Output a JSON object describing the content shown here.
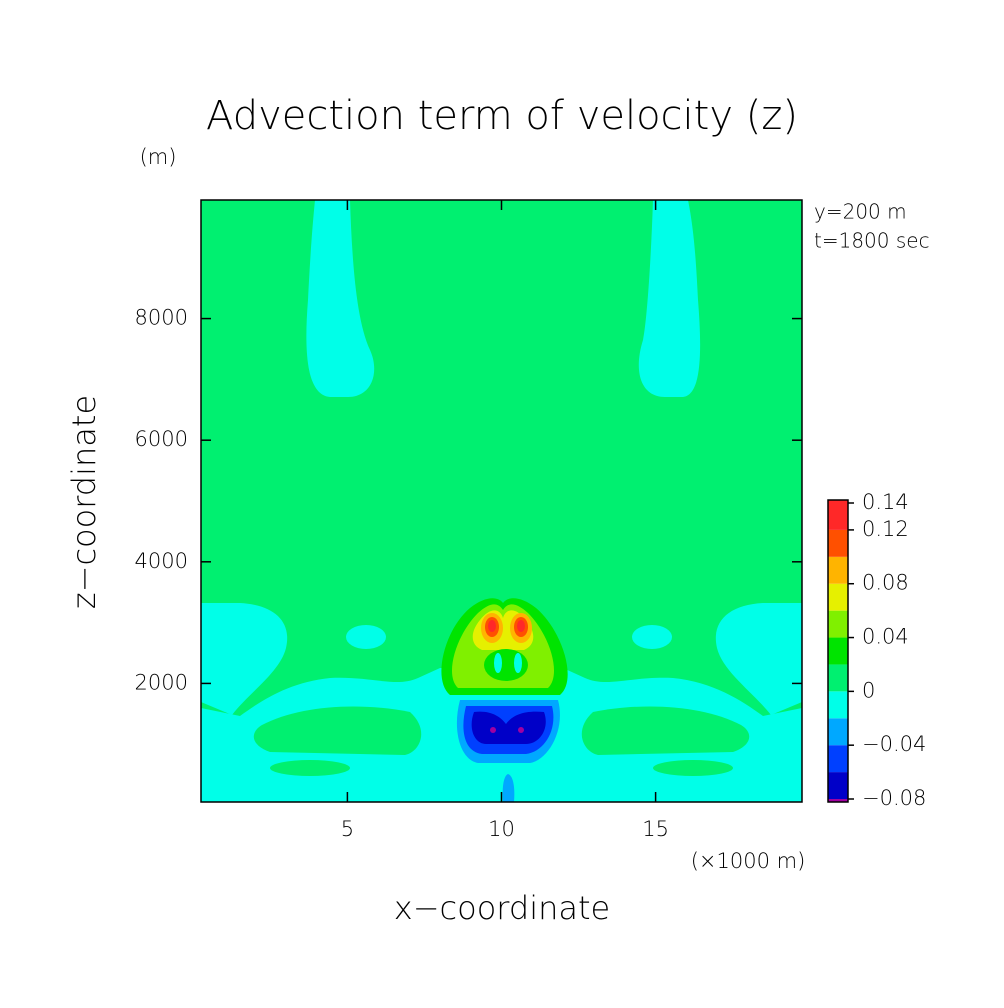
{
  "chart_data": {
    "type": "contour",
    "title": "Advection term of velocity (z)",
    "x_label": "x−coordinate",
    "y_label": "z−coordinate",
    "x_unit": "(×1000 m)",
    "y_unit": "(m)",
    "annotations": [
      "y=200 m",
      "t=1800 sec"
    ],
    "xlim": [
      0.25,
      19.75
    ],
    "xticks": [
      5,
      10,
      15
    ],
    "ylim": [
      50,
      9950
    ],
    "yticks": [
      2000,
      4000,
      6000,
      8000
    ],
    "levels": [
      -0.08,
      -0.06,
      -0.04,
      -0.02,
      0,
      0.02,
      0.04,
      0.06,
      0.08,
      0.1,
      0.12,
      0.14
    ],
    "colors": [
      "#0000c8",
      "#0040ff",
      "#00a8ff",
      "#00ffe8",
      "#00f070",
      "#00e400",
      "#80f000",
      "#e6f000",
      "#ffb400",
      "#ff5000",
      "#ff2828"
    ],
    "under_color": "#a000a0",
    "colorbar_ticks": [
      {
        "value": -0.08,
        "label": "−0.08"
      },
      {
        "value": -0.04,
        "label": "−0.04"
      },
      0,
      0.04,
      0.08,
      0.12,
      0.14
    ]
  }
}
